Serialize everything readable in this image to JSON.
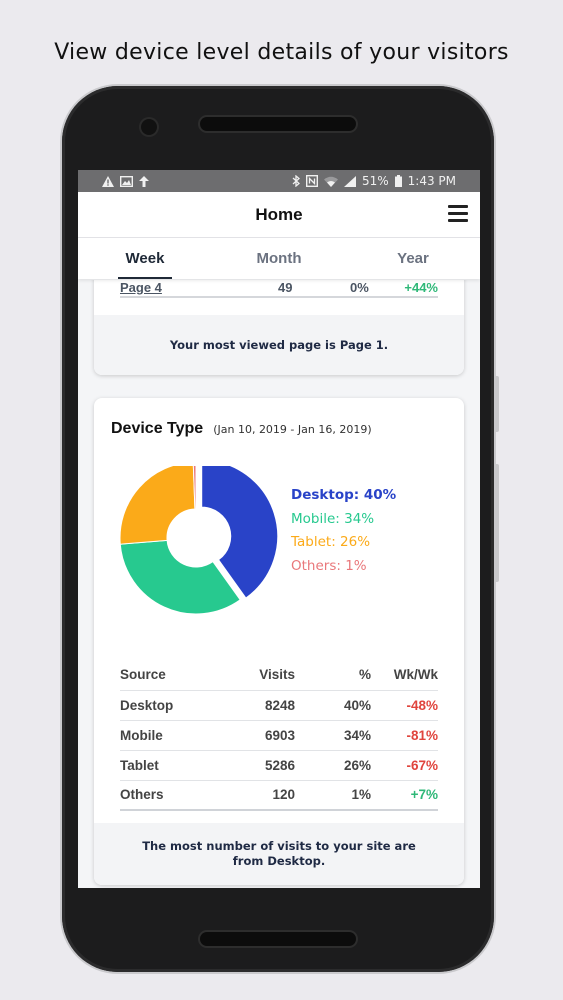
{
  "caption": "View device level details of your visitors",
  "statusbar": {
    "left_icons": [
      "warning-icon",
      "image-icon",
      "upload-icon"
    ],
    "right_icons": [
      "bluetooth-icon",
      "nfc-icon",
      "wifi-icon",
      "signal-icon",
      "battery-icon"
    ],
    "battery": "51%",
    "time": "1:43 PM"
  },
  "appbar": {
    "title": "Home",
    "menu_icon": "hamburger-menu-icon"
  },
  "tabs": [
    {
      "label": "Week",
      "active": true
    },
    {
      "label": "Month",
      "active": false
    },
    {
      "label": "Year",
      "active": false
    }
  ],
  "pages_card": {
    "partial_row": {
      "page": "Page 4",
      "visits": "49",
      "pct": "0%",
      "wkwk": "+44%"
    },
    "footer": "Your most viewed page is Page 1."
  },
  "device_card": {
    "title": "Device Type",
    "date_range": "(Jan 10, 2019 - Jan 16, 2019)",
    "legend": [
      {
        "label": "Desktop: 40%",
        "color": "#2943c8"
      },
      {
        "label": "Mobile: 34%",
        "color": "#27c98f"
      },
      {
        "label": "Tablet: 26%",
        "color": "#fbaa19"
      },
      {
        "label": "Others: 1%",
        "color": "#e9787b"
      }
    ],
    "table": {
      "headers": [
        "Source",
        "Visits",
        "%",
        "Wk/Wk"
      ],
      "rows": [
        {
          "source": "Desktop",
          "visits": "8248",
          "pct": "40%",
          "wkwk": "-48%",
          "trend": "down"
        },
        {
          "source": "Mobile",
          "visits": "6903",
          "pct": "34%",
          "wkwk": "-81%",
          "trend": "down"
        },
        {
          "source": "Tablet",
          "visits": "5286",
          "pct": "26%",
          "wkwk": "-67%",
          "trend": "down"
        },
        {
          "source": "Others",
          "visits": "120",
          "pct": "1%",
          "wkwk": "+7%",
          "trend": "up"
        }
      ]
    },
    "footer": "The most number of visits to your site are from Desktop."
  },
  "chart_data": {
    "type": "pie",
    "categories": [
      "Desktop",
      "Mobile",
      "Tablet",
      "Others"
    ],
    "values": [
      8248,
      6903,
      5286,
      120
    ],
    "percent": [
      40,
      34,
      26,
      1
    ],
    "colors": [
      "#2943c8",
      "#27c98f",
      "#fbaa19",
      "#e9787b"
    ],
    "donut": true
  }
}
